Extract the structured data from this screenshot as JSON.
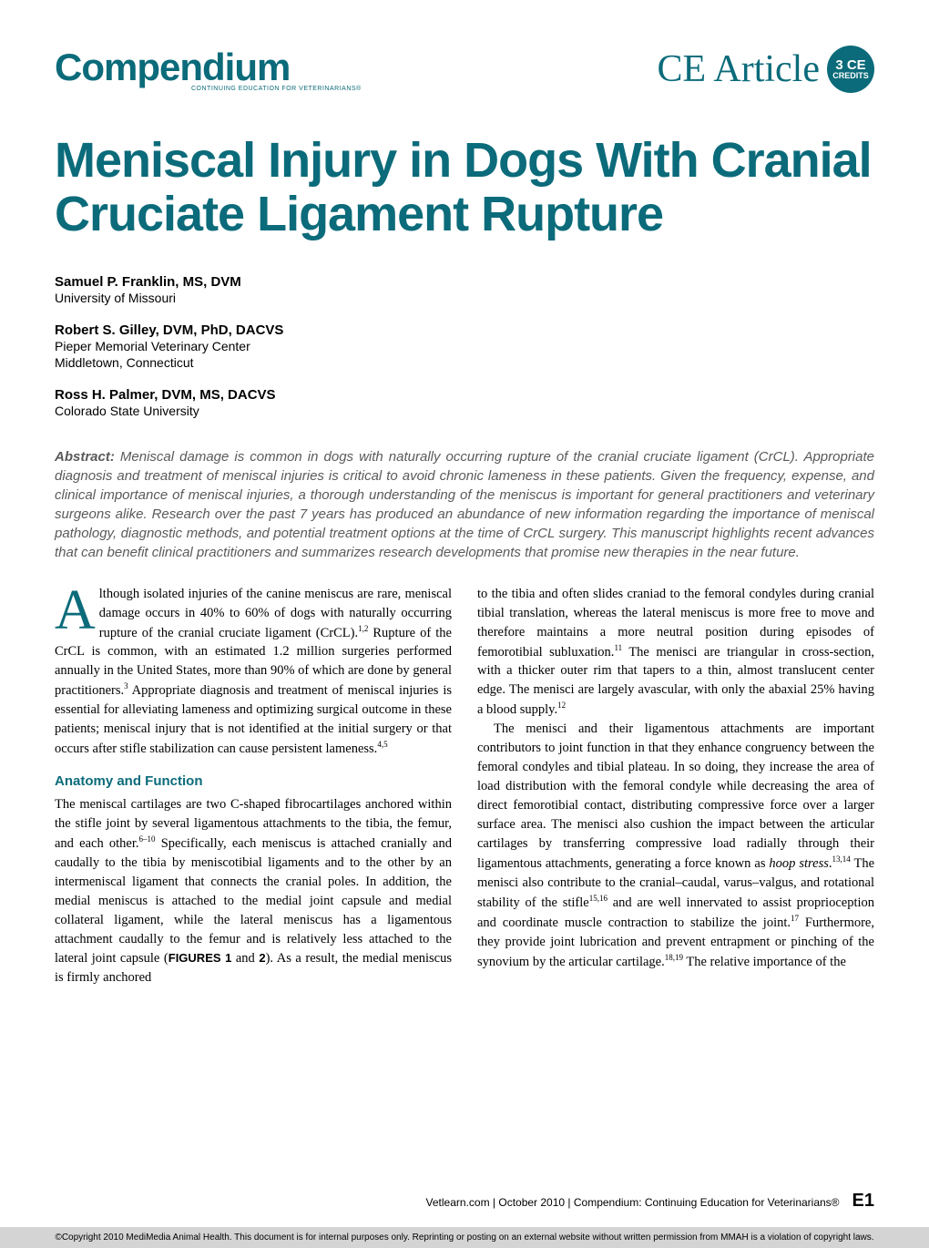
{
  "header": {
    "logo": "Compendium",
    "logo_subtitle": "CONTINUING EDUCATION FOR VETERINARIANS®",
    "ce_article": "CE Article",
    "badge_top": "3 CE",
    "badge_bottom": "CREDITS"
  },
  "title": "Meniscal Injury in Dogs With Cranial Cruciate Ligament Rupture",
  "authors": [
    {
      "name": "Samuel P. Franklin, MS, DVM",
      "affiliation1": "University of Missouri",
      "affiliation2": ""
    },
    {
      "name": "Robert S. Gilley, DVM, PhD, DACVS",
      "affiliation1": "Pieper Memorial Veterinary Center",
      "affiliation2": "Middletown, Connecticut"
    },
    {
      "name": "Ross H. Palmer, DVM, MS, DACVS",
      "affiliation1": "Colorado State University",
      "affiliation2": ""
    }
  ],
  "abstract": {
    "label": "Abstract:",
    "text": "Meniscal damage is common in dogs with naturally occurring rupture of the cranial cruciate ligament (CrCL). Appropriate diagnosis and treatment of meniscal injuries is critical to avoid chronic lameness in these patients. Given the frequency, expense, and clinical importance of meniscal injuries, a thorough understanding of the meniscus is important for general practitioners and veterinary surgeons alike. Research over the past 7 years has produced an abundance of new information regarding the importance of meniscal pathology, diagnostic methods, and potential treatment options at the time of CrCL surgery. This manuscript highlights recent advances that can benefit clinical practitioners and summarizes research developments that promise new therapies in the near future."
  },
  "body": {
    "col1_para1_dropcap": "A",
    "col1_para1_text": "lthough isolated injuries of the canine meniscus are rare, meniscal damage occurs in 40% to 60% of dogs with naturally occurring rupture of the cranial cruciate ligament (CrCL).",
    "col1_para1_sup1": "1,2",
    "col1_para1_text2": " Rupture of the CrCL is common, with an estimated 1.2 million surgeries performed annually in the United States, more than 90% of which are done by general practitioners.",
    "col1_para1_sup2": "3",
    "col1_para1_text3": " Appropriate diagnosis and treatment of meniscal injuries is essential for alleviating lameness and optimizing surgical outcome in these patients; meniscal injury that is not identified at the initial surgery or that occurs after stifle stabilization can cause persistent lameness.",
    "col1_para1_sup3": "4,5",
    "section_heading": "Anatomy and Function",
    "col1_para2_text": "The meniscal cartilages are two C-shaped fibrocartilages anchored within the stifle joint by several ligamentous attachments to the tibia, the femur, and each other.",
    "col1_para2_sup1": "6–10",
    "col1_para2_text2": " Specifically, each meniscus is attached cranially and caudally to the tibia by meniscotibial ligaments and to the other by an intermeniscal ligament that connects the cranial poles. In addition, the medial meniscus is attached to the medial joint capsule and medial collateral ligament, while the lateral meniscus has a ligamentous attachment caudally to the femur and is relatively less attached to the lateral joint capsule (",
    "col1_figures": "FIGURES 1",
    "col1_and": " and ",
    "col1_fig2": "2",
    "col1_para2_text3": "). As a result, the medial meniscus is firmly anchored",
    "col2_para1_text": "to the tibia and often slides craniad to the femoral condyles during cranial tibial translation, whereas the lateral meniscus is more free to move and therefore maintains a more neutral position during episodes of femorotibial subluxation.",
    "col2_para1_sup1": "11",
    "col2_para1_text2": " The menisci are triangular in cross-section, with a thicker outer rim that tapers to a thin, almost translucent center edge. The menisci are largely avascular, with only the abaxial 25% having a blood supply.",
    "col2_para1_sup2": "12",
    "col2_para2_text": "The menisci and their ligamentous attachments are important contributors to joint function in that they enhance congruency between the femoral condyles and tibial plateau. In so doing, they increase the area of load distribution with the femoral condyle while decreasing the area of direct femorotibial contact, distributing compressive force over a larger surface area. The menisci also cushion the impact between the articular cartilages by transferring compressive load radially through their ligamentous attachments, generating a force known as ",
    "col2_hoop": "hoop stress",
    "col2_para2_text2": ".",
    "col2_para2_sup1": "13,14",
    "col2_para2_text3": " The menisci also contribute to the cranial–caudal, varus–valgus, and rotational stability of the stifle",
    "col2_para2_sup2": "15,16",
    "col2_para2_text4": " and are well innervated to assist proprioception and coordinate muscle contraction to stabilize the joint.",
    "col2_para2_sup3": "17",
    "col2_para2_text5": " Furthermore, they provide joint lubrication and prevent entrapment or pinching of the synovium by the articular cartilage.",
    "col2_para2_sup4": "18,19",
    "col2_para2_text6": " The relative importance of the"
  },
  "footer": {
    "citation": "Vetlearn.com  |  October 2010  |  Compendium: Continuing Education for Veterinarians®",
    "page_num": "E1",
    "copyright": "©Copyright 2010 MediMedia Animal Health. This document is for internal purposes only. Reprinting or posting on an external website without written permission from MMAH is a violation of copyright laws."
  },
  "colors": {
    "brand_teal": "#0b6b7a",
    "abstract_gray": "#5a5a5a",
    "footer_gray": "#d4d4d4",
    "text_black": "#000000",
    "background": "#ffffff"
  },
  "typography": {
    "logo_size": 42,
    "title_size": 54,
    "body_size": 14.5,
    "abstract_size": 15,
    "author_name_size": 15,
    "section_heading_size": 15,
    "dropcap_size": 62
  }
}
